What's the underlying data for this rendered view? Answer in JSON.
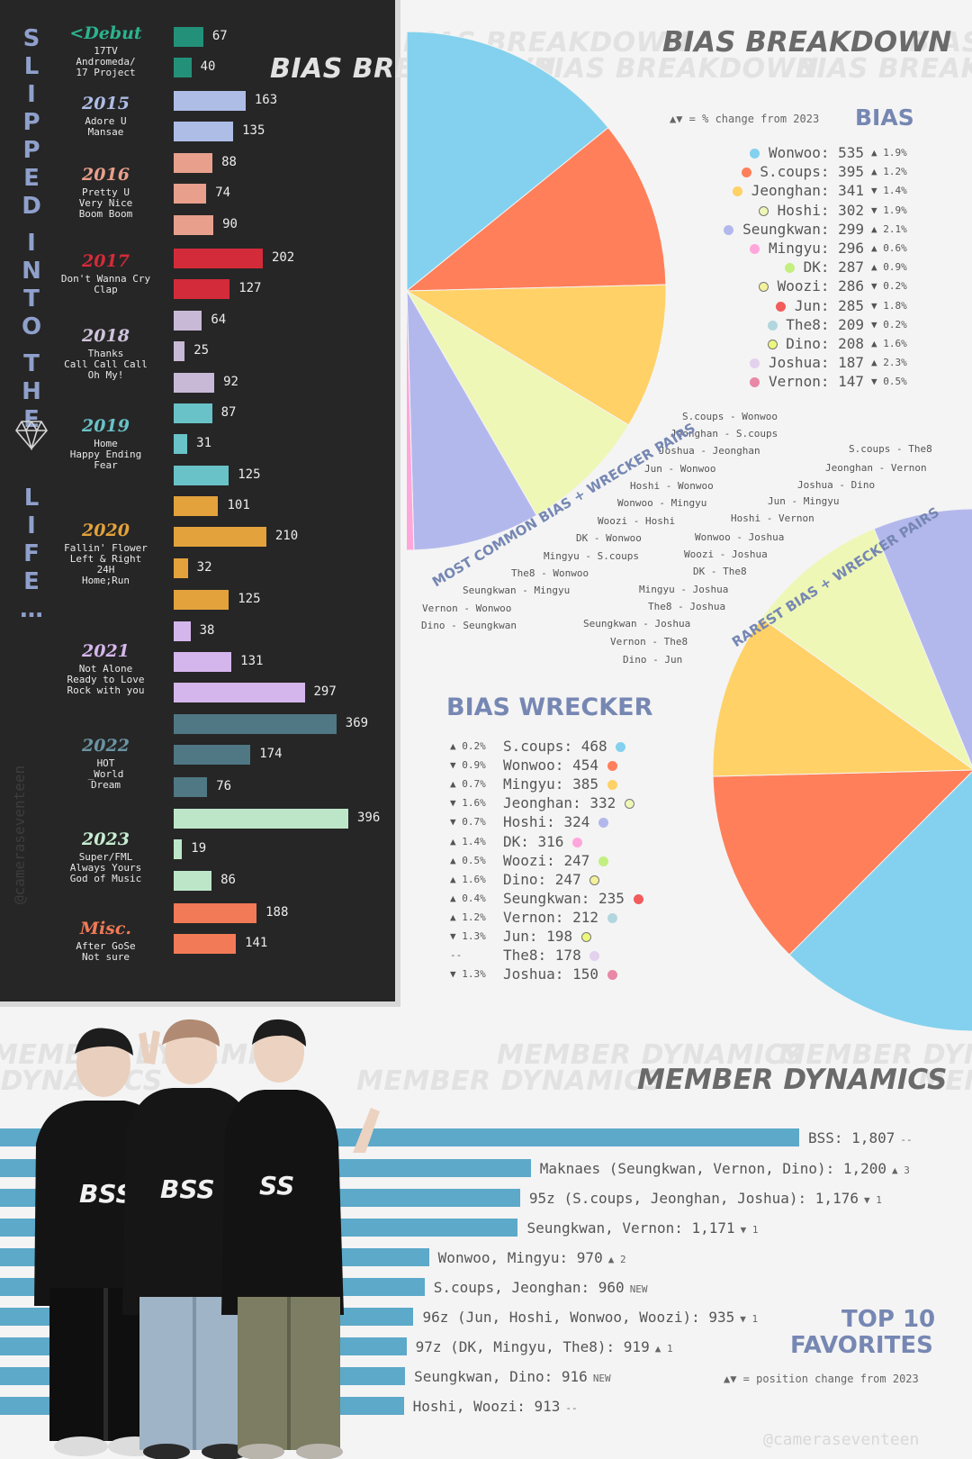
{
  "side_title": {
    "letters": [
      "S",
      "L",
      "I",
      "P",
      "P",
      "E",
      "D",
      "",
      "I",
      "N",
      "T",
      "O",
      "",
      "T",
      "H",
      "E",
      "",
      "L",
      "I",
      "F",
      "E",
      "…"
    ],
    "credit": "@cameraseventeen"
  },
  "eras": [
    {
      "year": "<Debut",
      "color": "#23917a",
      "songs": [
        "17TV",
        "Andromeda/",
        "17 Project"
      ],
      "values": [
        67,
        40
      ]
    },
    {
      "year": "2015",
      "color": "#aebde6",
      "songs": [
        "Adore U",
        "Mansae"
      ],
      "values": [
        163,
        135
      ]
    },
    {
      "year": "2016",
      "color": "#e89f8c",
      "songs": [
        "Pretty U",
        "Very Nice",
        "Boom Boom"
      ],
      "values": [
        88,
        74,
        90
      ]
    },
    {
      "year": "2017",
      "color": "#d42b3a",
      "songs": [
        "Don't Wanna Cry",
        "Clap"
      ],
      "values": [
        202,
        127
      ]
    },
    {
      "year": "2018",
      "color": "#c8b9d6",
      "songs": [
        "Thanks",
        "Call Call Call",
        "Oh My!"
      ],
      "values": [
        64,
        25,
        92
      ]
    },
    {
      "year": "2019",
      "color": "#69c2c8",
      "songs": [
        "Home",
        "Happy Ending",
        "Fear"
      ],
      "values": [
        87,
        31,
        125
      ]
    },
    {
      "year": "2020",
      "color": "#e3a23b",
      "songs": [
        "Fallin' Flower",
        "Left & Right",
        "24H",
        "Home;Run"
      ],
      "values": [
        101,
        210,
        32,
        125
      ]
    },
    {
      "year": "2021",
      "color": "#d5b6ec",
      "songs": [
        "Not Alone",
        "Ready to Love",
        "Rock with you"
      ],
      "values": [
        38,
        131,
        297
      ]
    },
    {
      "year": "2022",
      "color": "#4f7784",
      "songs": [
        "HOT",
        "_World",
        "Dream"
      ],
      "values": [
        369,
        174,
        76
      ]
    },
    {
      "year": "2023",
      "color": "#bde6c9",
      "songs": [
        "Super/FML",
        "Always Yours",
        "God of Music"
      ],
      "values": [
        396,
        19,
        86
      ]
    },
    {
      "year": "Misc.",
      "color": "#f27a56",
      "songs": [
        "After GoSe",
        "Not sure"
      ],
      "values": [
        188,
        141
      ]
    }
  ],
  "bias_breakdown": {
    "watermark": "BIAS BREAKDOWN",
    "title": "BIAS BREAKDOWN",
    "note": "▲▼ = % change from 2023"
  },
  "chart_data": [
    {
      "type": "bar",
      "title": "",
      "categories": [
        "17TV",
        "Andromeda/17 Project",
        "Adore U",
        "Mansae",
        "Pretty U",
        "Very Nice",
        "Boom Boom",
        "Don't Wanna Cry",
        "Clap",
        "Thanks",
        "Call Call Call",
        "Oh My!",
        "Home",
        "Happy Ending",
        "Fear",
        "Fallin' Flower",
        "Left & Right",
        "24H",
        "Home;Run",
        "Not Alone",
        "Ready to Love",
        "Rock with you",
        "HOT",
        "_World",
        "Dream",
        "Super/FML",
        "Always Yours",
        "God of Music",
        "After GoSe",
        "Not sure"
      ],
      "values": [
        67,
        40,
        163,
        135,
        88,
        74,
        90,
        202,
        127,
        64,
        25,
        92,
        87,
        31,
        125,
        101,
        210,
        32,
        125,
        38,
        131,
        297,
        369,
        174,
        76,
        396,
        19,
        86,
        188,
        141
      ]
    },
    {
      "type": "pie",
      "title": "BIAS",
      "series": [
        {
          "name": "BIAS",
          "values": [
            535,
            395,
            341,
            302,
            299,
            296,
            287,
            286,
            285,
            209,
            208,
            187,
            147
          ]
        }
      ],
      "categories": [
        "Wonwoo",
        "S.coups",
        "Jeonghan",
        "Hoshi",
        "Seungkwan",
        "Mingyu",
        "DK",
        "Woozi",
        "Jun",
        "The8",
        "Dino",
        "Joshua",
        "Vernon"
      ],
      "changes": [
        "▲ 1.9%",
        "▲ 1.2%",
        "▼ 1.4%",
        "▼ 1.9%",
        "▲ 2.1%",
        "▲ 0.6%",
        "▲ 0.9%",
        "▼ 0.2%",
        "▼ 1.8%",
        "▼ 0.2%",
        "▲ 1.6%",
        "▲ 2.3%",
        "▼ 0.5%"
      ],
      "colors": [
        "#83d1ee",
        "#ff7f5a",
        "#ffd166",
        "#eef7b5",
        "#b3b8ec",
        "#ffa7da",
        "#c2ef7f",
        "#f4f29a",
        "#f25c5c",
        "#b2d6de",
        "#ecf77c",
        "#e3d1ee",
        "#e888a6"
      ]
    },
    {
      "type": "pie",
      "title": "BIAS WRECKER",
      "series": [
        {
          "name": "BIAS WRECKER",
          "values": [
            468,
            454,
            385,
            332,
            324,
            316,
            247,
            247,
            235,
            212,
            198,
            178,
            150
          ]
        }
      ],
      "categories": [
        "S.coups",
        "Wonwoo",
        "Mingyu",
        "Jeonghan",
        "Hoshi",
        "DK",
        "Woozi",
        "Dino",
        "Seungkwan",
        "Vernon",
        "Jun",
        "The8",
        "Joshua"
      ],
      "changes": [
        "▲ 0.2%",
        "▼ 0.9%",
        "▲ 0.7%",
        "▼ 1.6%",
        "▼ 0.7%",
        "▲ 1.4%",
        "▲ 0.5%",
        "▲ 1.6%",
        "▲ 0.4%",
        "▲ 1.2%",
        "▼ 1.3%",
        "--",
        "▼ 1.3%"
      ],
      "colors": [
        "#83d1ee",
        "#ff7f5a",
        "#ffd166",
        "#eef7b5",
        "#b3b8ec",
        "#ffa7da",
        "#c2ef7f",
        "#f4f29a",
        "#f25c5c",
        "#b2d6de",
        "#ecf77c",
        "#e3d1ee",
        "#e888a6"
      ]
    },
    {
      "type": "bar",
      "title": "TOP 10 FAVORITES",
      "categories": [
        "BSS",
        "Maknaes (Seungkwan, Vernon, Dino)",
        "95z (S.coups, Jeonghan, Joshua)",
        "Seungkwan, Vernon",
        "Wonwoo, Mingyu",
        "S.coups, Jeonghan",
        "96z (Jun, Hoshi, Wonwoo, Woozi)",
        "97z (DK, Mingyu, The8)",
        "Seungkwan, Dino",
        "Hoshi, Woozi"
      ],
      "values": [
        1807,
        1200,
        1176,
        1171,
        970,
        960,
        935,
        919,
        916,
        913
      ],
      "changes": [
        "--",
        "▲ 3",
        "▼ 1",
        "▼ 1",
        "▲ 2",
        "NEW",
        "▼ 1",
        "▲ 1",
        "NEW",
        "--"
      ]
    }
  ],
  "most_common_pairs": {
    "label": "MOST COMMON BIAS + WRECKER PAIRS",
    "pairs": [
      "S.coups - Wonwoo",
      "Jeonghan - S.coups",
      "Joshua - Jeonghan",
      "Jun - Wonwoo",
      "Hoshi - Wonwoo",
      "Wonwoo - Mingyu",
      "Woozi - Hoshi",
      "DK - Wonwoo",
      "Mingyu - S.coups",
      "The8 - Wonwoo",
      "Seungkwan - Mingyu",
      "Vernon - Wonwoo",
      "Dino - Seungkwan"
    ]
  },
  "rarest_pairs": {
    "label": "RAREST BIAS + WRECKER PAIRS",
    "pairs": [
      "S.coups - The8",
      "Jeonghan - Vernon",
      "Joshua - Dino",
      "Jun - Mingyu",
      "Hoshi - Vernon",
      "Wonwoo - Joshua",
      "Woozi - Joshua",
      "DK - The8",
      "Mingyu - Joshua",
      "The8 - Joshua",
      "Seungkwan - Joshua",
      "Vernon - The8",
      "Dino - Jun"
    ]
  },
  "member_dynamics": {
    "watermark": "MEMBER DYNAMICS",
    "title": "MEMBER DYNAMICS",
    "top10_title_1": "TOP 10",
    "top10_title_2": "FAVORITES",
    "note": "▲▼ = position change from 2023"
  },
  "credit_bottom": "@cameraseventeen"
}
